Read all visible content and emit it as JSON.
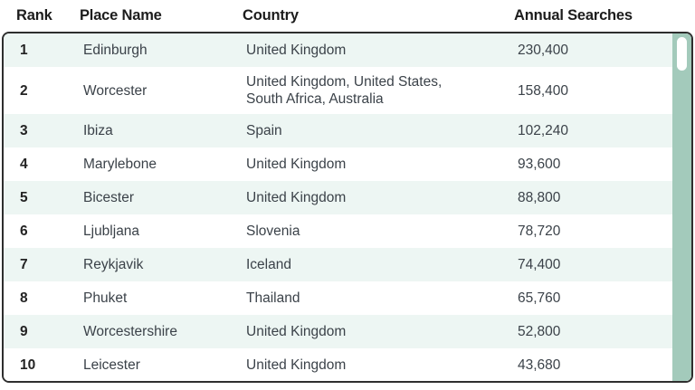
{
  "colors": {
    "row_bg": "#ffffff",
    "row_alt": "#edf6f3",
    "scroll_track": "#a3cabb",
    "scroll_thumb": "#ffffff",
    "table_border": "#2e2e2e",
    "header_text": "#1c1c1c",
    "body_text": "#3b4249",
    "rank_text": "#232323",
    "page_bg": "#ffffff"
  },
  "table": {
    "columns": [
      "Rank",
      "Place Name",
      "Country",
      "Annual Searches"
    ],
    "rows": [
      {
        "rank": "1",
        "place": "Edinburgh",
        "country": "United Kingdom",
        "searches": "230,400"
      },
      {
        "rank": "2",
        "place": "Worcester",
        "country": "United Kingdom, United States, South Africa, Australia",
        "searches": "158,400"
      },
      {
        "rank": "3",
        "place": "Ibiza",
        "country": "Spain",
        "searches": "102,240"
      },
      {
        "rank": "4",
        "place": "Marylebone",
        "country": "United Kingdom",
        "searches": "93,600"
      },
      {
        "rank": "5",
        "place": "Bicester",
        "country": "United Kingdom",
        "searches": "88,800"
      },
      {
        "rank": "6",
        "place": "Ljubljana",
        "country": "Slovenia",
        "searches": "78,720"
      },
      {
        "rank": "7",
        "place": "Reykjavik",
        "country": "Iceland",
        "searches": "74,400"
      },
      {
        "rank": "8",
        "place": "Phuket",
        "country": "Thailand",
        "searches": "65,760"
      },
      {
        "rank": "9",
        "place": "Worcestershire",
        "country": "United Kingdom",
        "searches": "52,800"
      },
      {
        "rank": "10",
        "place": "Leicester",
        "country": "United Kingdom",
        "searches": "43,680"
      }
    ]
  }
}
